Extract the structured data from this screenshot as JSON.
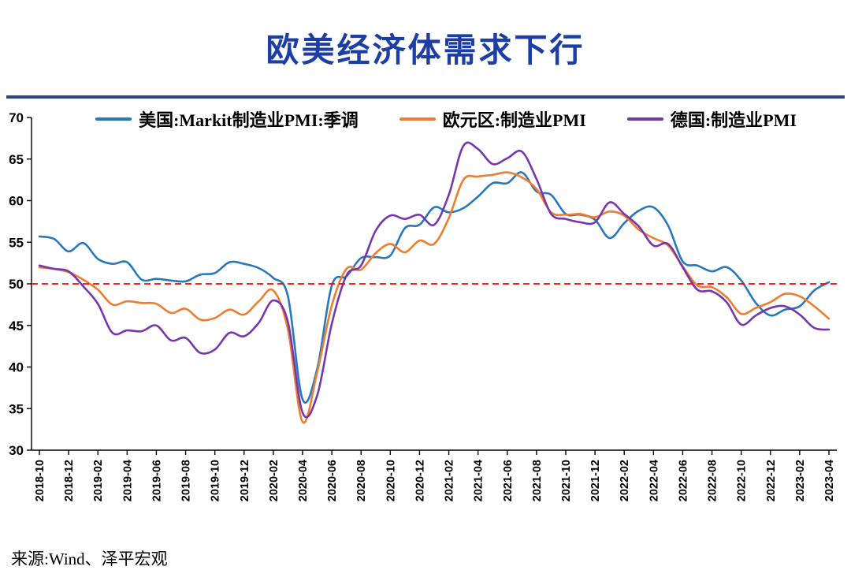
{
  "footer": {
    "source": "来源:Wind、泽平宏观"
  },
  "colors": {
    "title": "#1d3fa5",
    "title_rule": "#2a4583",
    "axis": "#000000",
    "reference_line": "#ff0000"
  },
  "chart_data": {
    "type": "line",
    "title": "欧美经济体需求下行",
    "xlabel": "",
    "ylabel": "",
    "ylim": [
      30,
      70
    ],
    "y_ticks": [
      30,
      35,
      40,
      45,
      50,
      55,
      60,
      65,
      70
    ],
    "grid": false,
    "legend_position": "top",
    "reference_line_y": 50,
    "x_frequency": "monthly",
    "x_start": "2018-10",
    "x_end": "2023-04",
    "x_tick_every": 2,
    "x_tick_labels": [
      "2018-10",
      "2018-12",
      "2019-02",
      "2019-04",
      "2019-06",
      "2019-08",
      "2019-10",
      "2019-12",
      "2020-02",
      "2020-04",
      "2020-06",
      "2020-08",
      "2020-10",
      "2020-12",
      "2021-02",
      "2021-04",
      "2021-06",
      "2021-08",
      "2021-10",
      "2021-12",
      "2022-02",
      "2022-04",
      "2022-06",
      "2022-08",
      "2022-10",
      "2022-12",
      "2023-02",
      "2023-04"
    ],
    "series": [
      {
        "key": "us",
        "name": "美国:Markit制造业PMI:季调",
        "color": "#2878be",
        "values": [
          55.7,
          55.4,
          53.9,
          54.9,
          53.0,
          52.4,
          52.6,
          50.5,
          50.6,
          50.4,
          50.3,
          51.1,
          51.3,
          52.6,
          52.4,
          51.9,
          50.7,
          48.5,
          36.1,
          39.8,
          49.8,
          50.9,
          53.1,
          53.2,
          53.4,
          56.7,
          57.1,
          59.2,
          58.6,
          59.1,
          60.5,
          62.1,
          62.1,
          63.4,
          61.1,
          60.7,
          58.4,
          58.3,
          57.7,
          55.5,
          57.3,
          58.8,
          59.2,
          57.0,
          52.7,
          52.2,
          51.5,
          52.0,
          50.4,
          47.7,
          46.2,
          46.9,
          47.3,
          49.2,
          50.2
        ]
      },
      {
        "key": "eurozone",
        "name": "欧元区:制造业PMI",
        "color": "#ed7d31",
        "values": [
          52.0,
          51.8,
          51.4,
          50.5,
          49.3,
          47.5,
          47.9,
          47.7,
          47.6,
          46.5,
          47.0,
          45.7,
          45.9,
          46.9,
          46.3,
          47.9,
          49.2,
          44.5,
          33.4,
          39.4,
          47.4,
          51.8,
          51.7,
          53.7,
          54.8,
          53.8,
          55.2,
          54.8,
          57.9,
          62.5,
          62.9,
          63.1,
          63.4,
          62.8,
          61.4,
          58.6,
          58.3,
          58.4,
          58.0,
          58.7,
          58.2,
          56.5,
          55.5,
          54.6,
          52.1,
          49.8,
          49.6,
          48.4,
          46.4,
          47.1,
          47.8,
          48.8,
          48.5,
          47.3,
          45.8
        ]
      },
      {
        "key": "germany",
        "name": "德国:制造业PMI",
        "color": "#7836ac",
        "values": [
          52.2,
          51.8,
          51.5,
          49.7,
          47.6,
          44.1,
          44.4,
          44.3,
          45.0,
          43.2,
          43.5,
          41.7,
          42.1,
          44.1,
          43.7,
          45.3,
          48.0,
          45.4,
          34.5,
          36.6,
          45.2,
          51.0,
          52.2,
          56.4,
          58.2,
          57.8,
          58.3,
          57.1,
          60.7,
          66.6,
          66.2,
          64.4,
          65.1,
          65.9,
          62.6,
          58.4,
          57.8,
          57.4,
          57.4,
          59.8,
          58.4,
          56.9,
          54.6,
          54.8,
          52.0,
          49.3,
          49.1,
          47.8,
          45.1,
          46.2,
          47.1,
          47.3,
          46.3,
          44.7,
          44.5
        ]
      }
    ]
  }
}
